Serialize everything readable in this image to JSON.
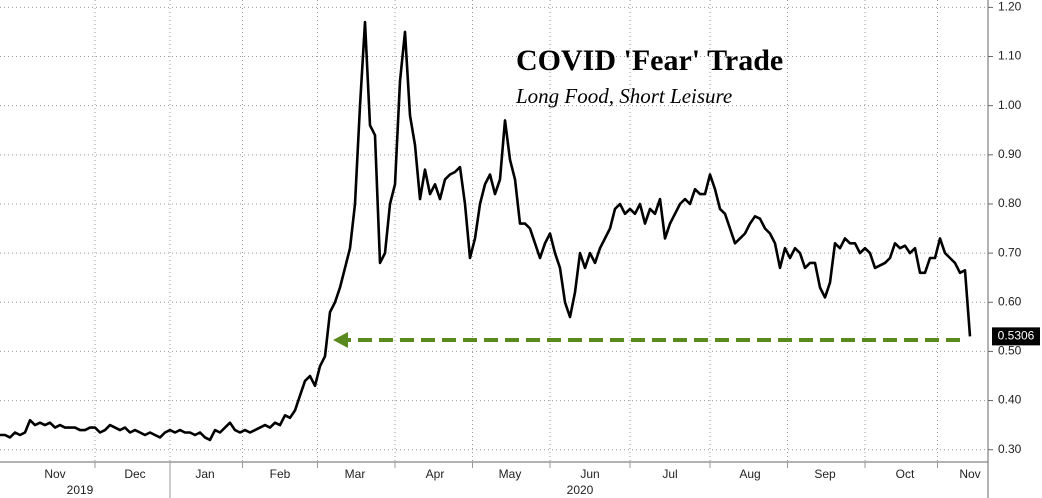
{
  "chart_data": {
    "type": "line",
    "title": "COVID 'Fear' Trade",
    "subtitle": "Long Food, Short Leisure",
    "categories": [
      null,
      null,
      null,
      null,
      null,
      null,
      null,
      null,
      null,
      null,
      null,
      "Nov",
      null,
      null,
      null,
      null,
      null,
      null,
      null,
      null,
      null,
      null,
      null,
      null,
      null,
      null,
      null,
      "Dec",
      null,
      null,
      null,
      null,
      null,
      null,
      null,
      null,
      null,
      null,
      null,
      null,
      null,
      "Jan",
      null,
      null,
      null,
      null,
      null,
      null,
      null,
      null,
      null,
      null,
      null,
      null,
      null,
      null,
      "Feb",
      null,
      null,
      null,
      null,
      null,
      null,
      null,
      null,
      null,
      null,
      null,
      null,
      null,
      null,
      "Mar",
      null,
      null,
      null,
      null,
      null,
      null,
      null,
      null,
      null,
      null,
      null,
      null,
      null,
      null,
      null,
      "Apr",
      null,
      null,
      null,
      null,
      null,
      null,
      null,
      null,
      null,
      null,
      null,
      null,
      null,
      null,
      "May",
      null,
      null,
      null,
      null,
      null,
      null,
      null,
      null,
      null,
      null,
      null,
      null,
      null,
      null,
      null,
      "Jun",
      null,
      null,
      null,
      null,
      null,
      null,
      null,
      null,
      null,
      null,
      null,
      null,
      null,
      null,
      null,
      "Jul",
      null,
      null,
      null,
      null,
      null,
      null,
      null,
      null,
      null,
      null,
      null,
      null,
      null,
      null,
      null,
      "Aug",
      null,
      null,
      null,
      null,
      null,
      null,
      null,
      null,
      null,
      null,
      null,
      null,
      null,
      null,
      "Sep",
      null,
      null,
      null,
      null,
      null,
      null,
      null,
      null,
      null,
      null,
      null,
      null,
      null,
      null,
      null,
      "Oct",
      null,
      null,
      null,
      null,
      null,
      null,
      null,
      null,
      null,
      null,
      null,
      null,
      "Nov"
    ],
    "x_groups": [
      null,
      null,
      null,
      null,
      null,
      null,
      null,
      null,
      null,
      null,
      null,
      null,
      null,
      null,
      null,
      null,
      "2019",
      null,
      null,
      null,
      null,
      null,
      null,
      null,
      null,
      null,
      null,
      null,
      null,
      null,
      null,
      null,
      null,
      null,
      null,
      null,
      null,
      null,
      null,
      null,
      null,
      null,
      null,
      null,
      null,
      null,
      null,
      null,
      null,
      null,
      null,
      null,
      null,
      null,
      null,
      null,
      null,
      null,
      null,
      null,
      null,
      null,
      null,
      null,
      null,
      null,
      null,
      null,
      null,
      null,
      null,
      null,
      null,
      null,
      null,
      null,
      null,
      null,
      null,
      null,
      null,
      null,
      null,
      null,
      null,
      null,
      null,
      null,
      null,
      null,
      null,
      null,
      null,
      null,
      null,
      null,
      null,
      null,
      null,
      null,
      null,
      null,
      null,
      null,
      null,
      null,
      null,
      null,
      null,
      null,
      null,
      null,
      null,
      null,
      null,
      null,
      "2020",
      null,
      null,
      null,
      null,
      null,
      null,
      null,
      null,
      null,
      null,
      null,
      null,
      null,
      null,
      null,
      null,
      null,
      null,
      null,
      null,
      null,
      null,
      null,
      null,
      null,
      null,
      null,
      null,
      null,
      null,
      null,
      null,
      null,
      null,
      null,
      null,
      null,
      null,
      null,
      null,
      null,
      null,
      null,
      null,
      null,
      null,
      null,
      null,
      null,
      null,
      null,
      null,
      null,
      null,
      null,
      null,
      null,
      null,
      null,
      null,
      null,
      null,
      null,
      null,
      null,
      null,
      null,
      null,
      null,
      null,
      null,
      null,
      null,
      null,
      null,
      null,
      null,
      null
    ],
    "series": [
      {
        "color": "#000000",
        "values": [
          0.33,
          0.33,
          0.325,
          0.335,
          0.33,
          0.335,
          0.36,
          0.35,
          0.355,
          0.35,
          0.355,
          0.345,
          0.35,
          0.345,
          0.345,
          0.345,
          0.34,
          0.34,
          0.345,
          0.345,
          0.335,
          0.34,
          0.35,
          0.345,
          0.34,
          0.345,
          0.335,
          0.34,
          0.335,
          0.33,
          0.335,
          0.33,
          0.325,
          0.335,
          0.34,
          0.335,
          0.34,
          0.335,
          0.335,
          0.33,
          0.335,
          0.325,
          0.32,
          0.34,
          0.335,
          0.345,
          0.355,
          0.34,
          0.335,
          0.34,
          0.335,
          0.34,
          0.345,
          0.35,
          0.345,
          0.355,
          0.35,
          0.37,
          0.365,
          0.38,
          0.41,
          0.44,
          0.45,
          0.43,
          0.47,
          0.49,
          0.58,
          0.6,
          0.63,
          0.67,
          0.71,
          0.8,
          1.0,
          1.17,
          0.96,
          0.94,
          0.68,
          0.7,
          0.8,
          0.84,
          1.05,
          1.15,
          0.98,
          0.92,
          0.81,
          0.87,
          0.82,
          0.84,
          0.81,
          0.85,
          0.86,
          0.865,
          0.875,
          0.8,
          0.69,
          0.73,
          0.8,
          0.84,
          0.86,
          0.82,
          0.85,
          0.97,
          0.89,
          0.85,
          0.76,
          0.76,
          0.75,
          0.72,
          0.69,
          0.72,
          0.74,
          0.7,
          0.67,
          0.6,
          0.57,
          0.62,
          0.7,
          0.67,
          0.7,
          0.68,
          0.71,
          0.73,
          0.75,
          0.79,
          0.8,
          0.78,
          0.79,
          0.78,
          0.8,
          0.76,
          0.79,
          0.78,
          0.81,
          0.73,
          0.76,
          0.78,
          0.8,
          0.81,
          0.8,
          0.83,
          0.82,
          0.82,
          0.86,
          0.83,
          0.79,
          0.78,
          0.75,
          0.72,
          0.73,
          0.74,
          0.76,
          0.775,
          0.77,
          0.75,
          0.74,
          0.72,
          0.67,
          0.71,
          0.69,
          0.71,
          0.7,
          0.67,
          0.68,
          0.68,
          0.63,
          0.61,
          0.64,
          0.72,
          0.71,
          0.73,
          0.72,
          0.72,
          0.7,
          0.71,
          0.7,
          0.67,
          0.675,
          0.68,
          0.69,
          0.72,
          0.71,
          0.715,
          0.7,
          0.71,
          0.66,
          0.66,
          0.69,
          0.69,
          0.73,
          0.7,
          0.69,
          0.68,
          0.66,
          0.665,
          0.5306
        ]
      }
    ],
    "ylim": [
      0.275,
      1.215
    ],
    "yticks": [
      {
        "value": 0.3,
        "label": "0.30"
      },
      {
        "value": 0.4,
        "label": "0.40"
      },
      {
        "value": 0.5,
        "label": "0.50"
      },
      {
        "value": 0.6,
        "label": "0.60"
      },
      {
        "value": 0.7,
        "label": "0.70"
      },
      {
        "value": 0.8,
        "label": "0.80"
      },
      {
        "value": 0.9,
        "label": "0.90"
      },
      {
        "value": 1.0,
        "label": "1.00"
      },
      {
        "value": 1.1,
        "label": "1.10"
      },
      {
        "value": 1.2,
        "label": "1.20"
      }
    ],
    "grid": true
  }
}
